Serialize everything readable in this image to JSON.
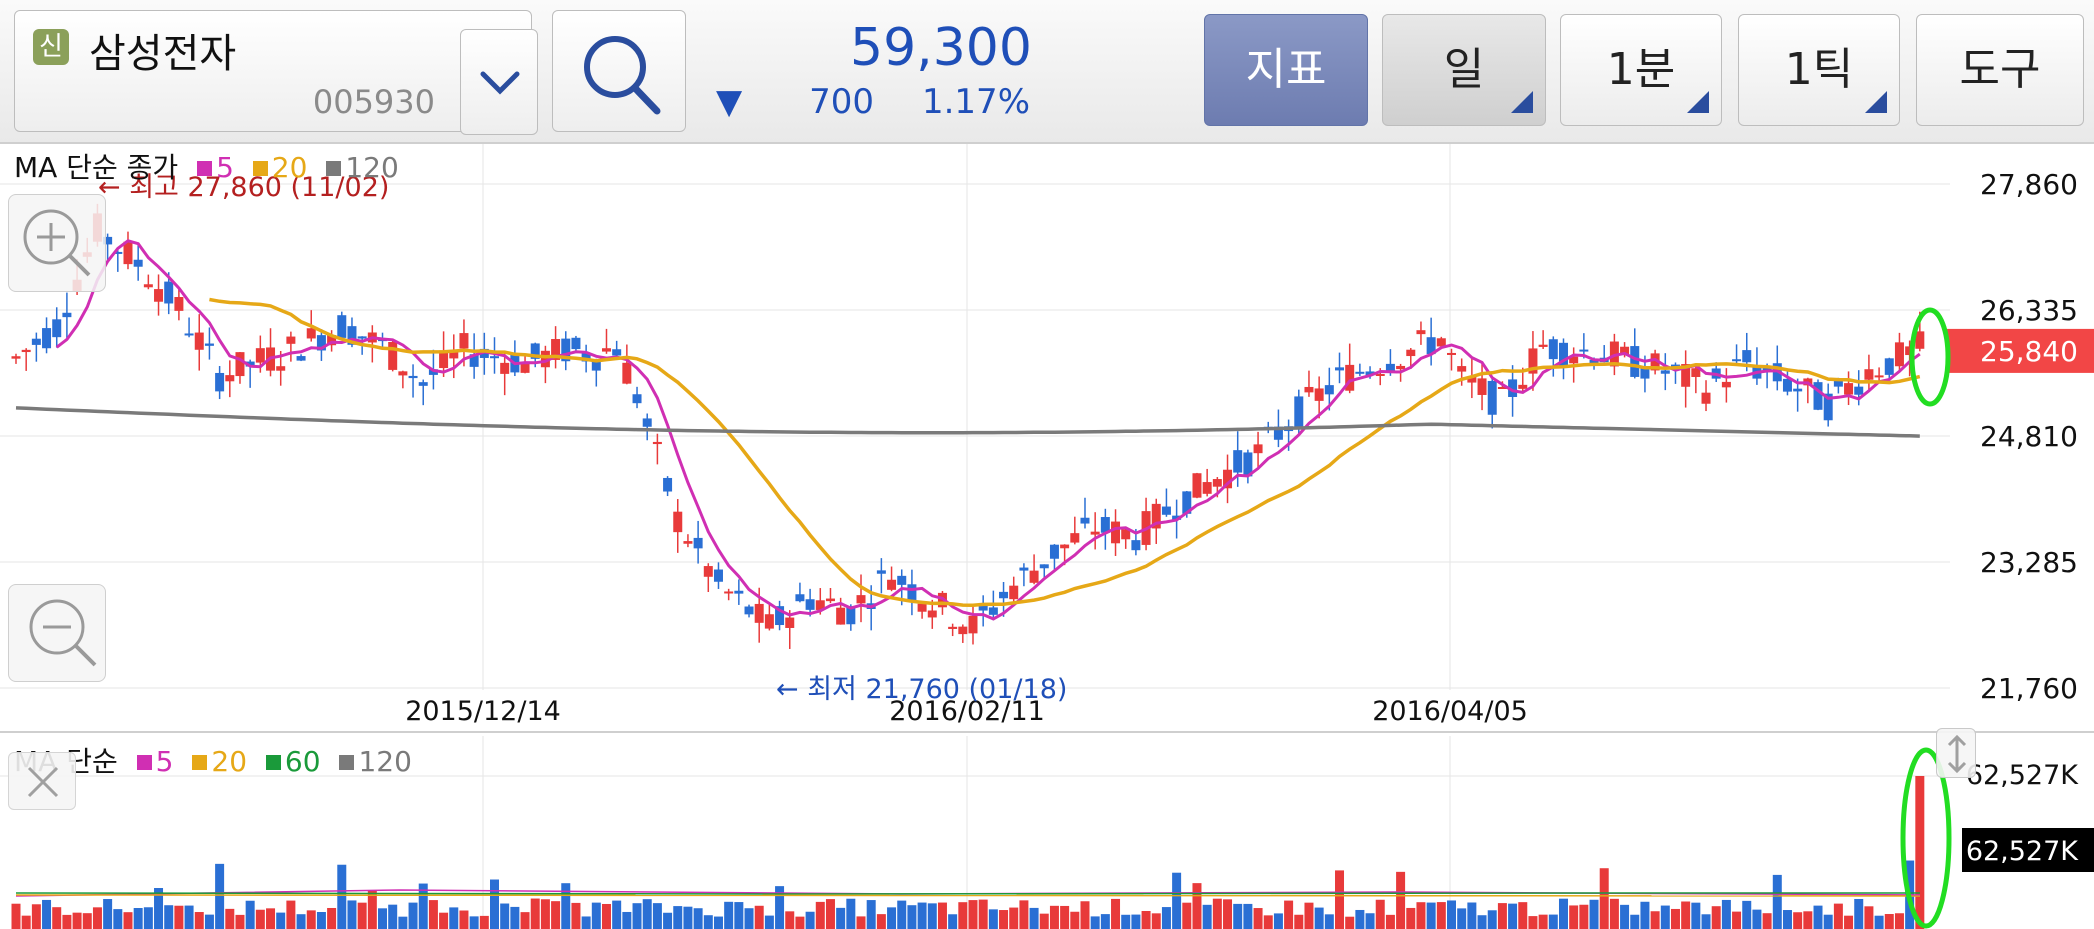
{
  "header": {
    "new_badge": "신",
    "stock_name": "삼성전자",
    "stock_code": "005930",
    "price": "59,300",
    "change_arrow": "▼",
    "change": "700",
    "change_pct": "1.17%",
    "buttons": {
      "indicator": "지표",
      "period": "일",
      "minute": "1분",
      "tick": "1틱",
      "tools": "도구"
    },
    "icons": {
      "dropdown": "chevron-down-icon",
      "search": "search-icon"
    }
  },
  "price_legend": {
    "label": "MA 단순 종가",
    "items": [
      {
        "label": "5",
        "color": "#d02fb3"
      },
      {
        "label": "20",
        "color": "#e6a817"
      },
      {
        "label": "120",
        "color": "#7a7a7a"
      }
    ]
  },
  "volume_legend": {
    "label": "MA 단순",
    "items": [
      {
        "label": "5",
        "color": "#d02fb3"
      },
      {
        "label": "20",
        "color": "#e6a817"
      },
      {
        "label": "60",
        "color": "#1a9a3a"
      },
      {
        "label": "120",
        "color": "#7a7a7a"
      }
    ]
  },
  "colors": {
    "up": "#e83a3a",
    "down": "#2a6fd4",
    "ma5": "#d02fb3",
    "ma20": "#e6a817",
    "ma60": "#1a9a3a",
    "ma120": "#7a7a7a",
    "highlight": "#22dd22",
    "current_tag": "#f24646"
  },
  "chart_data": [
    {
      "type": "candlestick",
      "ylim": [
        21760,
        27860
      ],
      "y_ticks": [
        "27,860",
        "26,335",
        "25,840",
        "24,810",
        "23,285",
        "21,760"
      ],
      "y_tick_values": [
        27860,
        26335,
        24810,
        23285,
        21760
      ],
      "current_value": 25840,
      "current_label": "25,840",
      "x_tick_labels": [
        "2015/12/14",
        "2016/02/11",
        "2016/04/05"
      ],
      "annotations": {
        "high": {
          "text": "← 최고 27,860 (11/02)",
          "value": 27860
        },
        "low": {
          "text": "← 최저 21,760 (01/18)",
          "value": 21760
        }
      },
      "moving_average_label": "MA 단순 종가"
    },
    {
      "type": "bar",
      "title": "",
      "y_ticks": [
        "62,527K"
      ],
      "max_value": 62527,
      "current_label": "62,527K",
      "moving_average_label": "MA 단순"
    }
  ]
}
